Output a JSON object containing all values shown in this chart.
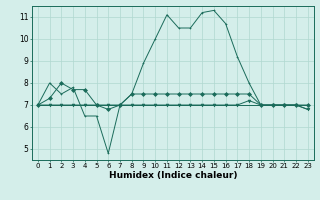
{
  "xlabel": "Humidex (Indice chaleur)",
  "bg_color": "#d4eeea",
  "line_color": "#1a6b5a",
  "grid_color": "#b0d8d0",
  "xlim": [
    -0.5,
    23.5
  ],
  "ylim": [
    4.5,
    11.5
  ],
  "yticks": [
    5,
    6,
    7,
    8,
    9,
    10,
    11
  ],
  "xticks": [
    0,
    1,
    2,
    3,
    4,
    5,
    6,
    7,
    8,
    9,
    10,
    11,
    12,
    13,
    14,
    15,
    16,
    17,
    18,
    19,
    20,
    21,
    22,
    23
  ],
  "series": [
    [
      7.0,
      8.0,
      7.5,
      7.8,
      6.5,
      6.5,
      4.8,
      7.0,
      7.5,
      8.9,
      10.0,
      11.1,
      10.5,
      10.5,
      11.2,
      11.3,
      10.7,
      9.2,
      8.0,
      7.0,
      7.0,
      7.0,
      7.0,
      6.8
    ],
    [
      7.0,
      7.3,
      8.0,
      7.7,
      7.7,
      7.0,
      6.8,
      7.0,
      7.5,
      7.5,
      7.5,
      7.5,
      7.5,
      7.5,
      7.5,
      7.5,
      7.5,
      7.5,
      7.5,
      7.0,
      7.0,
      7.0,
      7.0,
      7.0
    ],
    [
      7.0,
      7.0,
      7.0,
      7.0,
      7.0,
      7.0,
      7.0,
      7.0,
      7.0,
      7.0,
      7.0,
      7.0,
      7.0,
      7.0,
      7.0,
      7.0,
      7.0,
      7.0,
      7.0,
      7.0,
      7.0,
      7.0,
      7.0,
      7.0
    ],
    [
      7.0,
      7.0,
      7.0,
      7.0,
      7.0,
      7.0,
      7.0,
      7.0,
      7.0,
      7.0,
      7.0,
      7.0,
      7.0,
      7.0,
      7.0,
      7.0,
      7.0,
      7.0,
      7.2,
      7.0,
      7.0,
      7.0,
      7.0,
      6.8
    ]
  ],
  "markersize": 2.0,
  "linewidth": 0.7,
  "tick_fontsize": 5.0,
  "xlabel_fontsize": 6.5,
  "figsize": [
    3.2,
    2.0
  ],
  "dpi": 100
}
